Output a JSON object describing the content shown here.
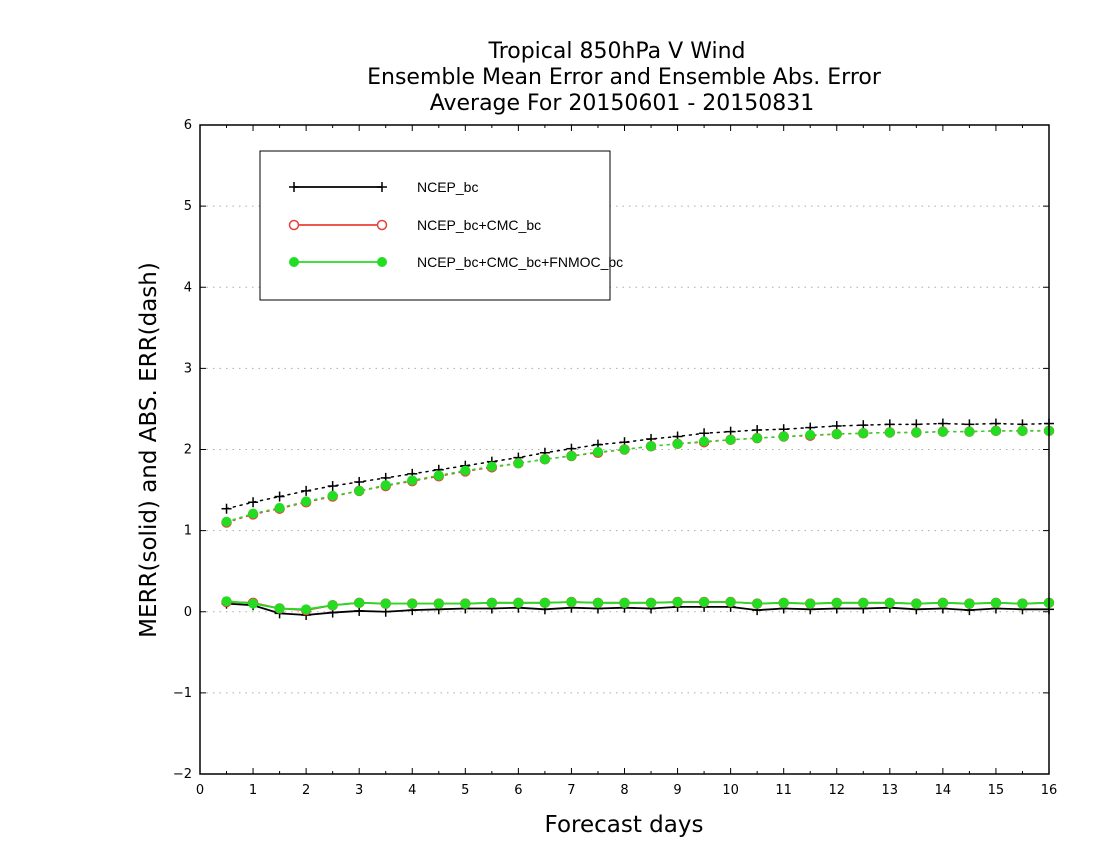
{
  "chart_data": {
    "type": "line",
    "title": [
      "Tropical 850hPa V Wind",
      "Ensemble Mean Error and Ensemble Abs. Error",
      "Average For 20150601 - 20150831"
    ],
    "xlabel": "Forecast days",
    "ylabel": "MERR(solid) and ABS. ERR(dash)",
    "xlim": [
      0,
      16
    ],
    "ylim": [
      -2,
      6
    ],
    "xticks": [
      0,
      1,
      2,
      3,
      4,
      5,
      6,
      7,
      8,
      9,
      10,
      11,
      12,
      13,
      14,
      15,
      16
    ],
    "yticks": [
      -2,
      -1,
      0,
      1,
      2,
      3,
      4,
      5,
      6
    ],
    "ytick_labels": [
      "−2",
      "−1",
      "0",
      "1",
      "2",
      "3",
      "4",
      "5",
      "6"
    ],
    "grid": "horizontal dotted",
    "legend_position": "top-left",
    "x": [
      0.5,
      1,
      1.5,
      2,
      2.5,
      3,
      3.5,
      4,
      4.5,
      5,
      5.5,
      6,
      6.5,
      7,
      7.5,
      8,
      8.5,
      9,
      9.5,
      10,
      10.5,
      11,
      11.5,
      12,
      12.5,
      13,
      13.5,
      14,
      14.5,
      15,
      15.5,
      16
    ],
    "series": [
      {
        "name": "NCEP_bc",
        "color": "#000000",
        "marker": "plus",
        "merr": [
          0.1,
          0.08,
          -0.02,
          -0.04,
          -0.01,
          0.01,
          0.0,
          0.02,
          0.03,
          0.04,
          0.04,
          0.05,
          0.03,
          0.05,
          0.04,
          0.05,
          0.04,
          0.06,
          0.06,
          0.06,
          0.02,
          0.04,
          0.03,
          0.04,
          0.04,
          0.05,
          0.03,
          0.04,
          0.02,
          0.04,
          0.03,
          0.03
        ],
        "abserr": [
          1.27,
          1.35,
          1.42,
          1.49,
          1.55,
          1.6,
          1.65,
          1.7,
          1.75,
          1.8,
          1.85,
          1.9,
          1.96,
          2.01,
          2.06,
          2.09,
          2.13,
          2.16,
          2.2,
          2.22,
          2.24,
          2.25,
          2.27,
          2.29,
          2.3,
          2.31,
          2.31,
          2.32,
          2.31,
          2.32,
          2.31,
          2.32
        ]
      },
      {
        "name": "NCEP_bc+CMC_bc",
        "color": "#e8403a",
        "marker": "open-circle",
        "merr": [
          0.12,
          0.11,
          0.04,
          0.02,
          0.08,
          0.11,
          0.1,
          0.1,
          0.1,
          0.1,
          0.11,
          0.11,
          0.11,
          0.12,
          0.11,
          0.11,
          0.11,
          0.12,
          0.12,
          0.12,
          0.1,
          0.11,
          0.1,
          0.11,
          0.11,
          0.11,
          0.1,
          0.11,
          0.1,
          0.11,
          0.1,
          0.11
        ],
        "abserr": [
          1.1,
          1.2,
          1.27,
          1.35,
          1.42,
          1.49,
          1.55,
          1.61,
          1.67,
          1.73,
          1.78,
          1.83,
          1.88,
          1.92,
          1.96,
          2.0,
          2.04,
          2.07,
          2.09,
          2.12,
          2.14,
          2.16,
          2.17,
          2.19,
          2.2,
          2.21,
          2.21,
          2.22,
          2.22,
          2.23,
          2.23,
          2.23
        ]
      },
      {
        "name": "NCEP_bc+CMC_bc+FNMOC_bc",
        "color": "#22dd22",
        "marker": "filled-circle",
        "merr": [
          0.13,
          0.1,
          0.04,
          0.03,
          0.08,
          0.11,
          0.1,
          0.1,
          0.1,
          0.1,
          0.11,
          0.11,
          0.11,
          0.12,
          0.11,
          0.11,
          0.11,
          0.12,
          0.12,
          0.12,
          0.1,
          0.11,
          0.1,
          0.11,
          0.11,
          0.11,
          0.1,
          0.11,
          0.1,
          0.11,
          0.1,
          0.11
        ],
        "abserr": [
          1.11,
          1.21,
          1.28,
          1.36,
          1.43,
          1.49,
          1.56,
          1.62,
          1.68,
          1.74,
          1.79,
          1.83,
          1.88,
          1.92,
          1.97,
          2.0,
          2.04,
          2.07,
          2.1,
          2.12,
          2.14,
          2.16,
          2.18,
          2.19,
          2.2,
          2.21,
          2.21,
          2.22,
          2.22,
          2.23,
          2.23,
          2.23
        ]
      }
    ]
  }
}
